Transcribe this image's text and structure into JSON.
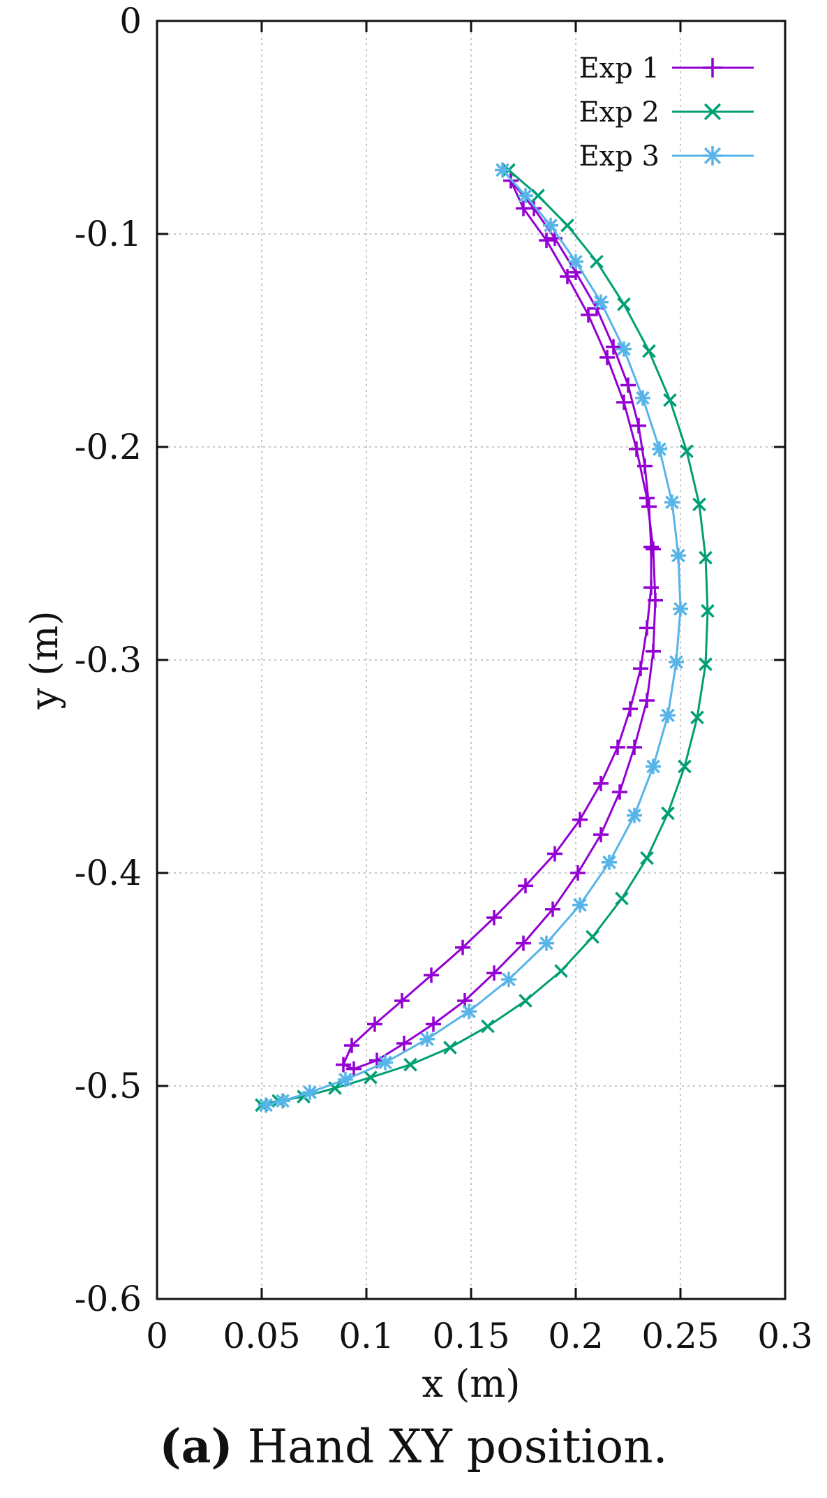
{
  "chart_data": {
    "type": "line",
    "title": "",
    "xlabel": "x (m)",
    "ylabel": "y (m)",
    "xlim": [
      0,
      0.3
    ],
    "ylim": [
      -0.6,
      0
    ],
    "xticks": [
      "0",
      "0.05",
      "0.1",
      "0.15",
      "0.2",
      "0.25",
      "0.3"
    ],
    "yticks": [
      "0",
      "-0.1",
      "-0.2",
      "-0.3",
      "-0.4",
      "-0.5",
      "-0.6"
    ],
    "xtick_values": [
      0,
      0.05,
      0.1,
      0.15,
      0.2,
      0.25,
      0.3
    ],
    "ytick_values": [
      0,
      -0.1,
      -0.2,
      -0.3,
      -0.4,
      -0.5,
      -0.6
    ],
    "grid": true,
    "legend_position": "top-right",
    "series": [
      {
        "name": "Exp 1",
        "color": "#9400d3",
        "marker": "plus",
        "x": [
          0.169,
          0.18,
          0.19,
          0.2,
          0.21,
          0.218,
          0.225,
          0.23,
          0.233,
          0.235,
          0.236,
          0.236,
          0.234,
          0.231,
          0.226,
          0.22,
          0.212,
          0.202,
          0.19,
          0.176,
          0.161,
          0.146,
          0.131,
          0.117,
          0.104,
          0.093,
          0.089,
          0.094,
          0.105,
          0.118,
          0.132,
          0.147,
          0.161,
          0.175,
          0.189,
          0.201,
          0.212,
          0.221,
          0.228,
          0.234,
          0.237,
          0.238,
          0.237,
          0.234,
          0.229,
          0.223,
          0.215,
          0.206,
          0.196,
          0.186,
          0.175,
          0.169
        ],
        "y": [
          -0.075,
          -0.088,
          -0.102,
          -0.118,
          -0.135,
          -0.153,
          -0.171,
          -0.19,
          -0.209,
          -0.228,
          -0.247,
          -0.266,
          -0.285,
          -0.304,
          -0.323,
          -0.341,
          -0.358,
          -0.375,
          -0.391,
          -0.406,
          -0.421,
          -0.435,
          -0.448,
          -0.46,
          -0.471,
          -0.481,
          -0.49,
          -0.492,
          -0.488,
          -0.48,
          -0.471,
          -0.46,
          -0.447,
          -0.433,
          -0.417,
          -0.4,
          -0.382,
          -0.362,
          -0.341,
          -0.319,
          -0.296,
          -0.272,
          -0.248,
          -0.224,
          -0.201,
          -0.179,
          -0.158,
          -0.138,
          -0.12,
          -0.103,
          -0.088,
          -0.075
        ]
      },
      {
        "name": "Exp 2",
        "color": "#009e73",
        "marker": "cross",
        "x": [
          0.168,
          0.182,
          0.196,
          0.21,
          0.223,
          0.235,
          0.245,
          0.253,
          0.259,
          0.262,
          0.263,
          0.262,
          0.258,
          0.252,
          0.244,
          0.234,
          0.222,
          0.208,
          0.193,
          0.176,
          0.158,
          0.14,
          0.121,
          0.102,
          0.085,
          0.07,
          0.058,
          0.05
        ],
        "y": [
          -0.07,
          -0.082,
          -0.096,
          -0.113,
          -0.133,
          -0.155,
          -0.178,
          -0.202,
          -0.227,
          -0.252,
          -0.277,
          -0.302,
          -0.327,
          -0.35,
          -0.372,
          -0.393,
          -0.412,
          -0.43,
          -0.446,
          -0.46,
          -0.472,
          -0.482,
          -0.49,
          -0.496,
          -0.501,
          -0.505,
          -0.507,
          -0.509
        ]
      },
      {
        "name": "Exp 3",
        "color": "#56b4e9",
        "marker": "star",
        "x": [
          0.165,
          0.176,
          0.188,
          0.2,
          0.212,
          0.223,
          0.232,
          0.24,
          0.246,
          0.249,
          0.25,
          0.248,
          0.244,
          0.237,
          0.228,
          0.216,
          0.202,
          0.186,
          0.168,
          0.149,
          0.129,
          0.109,
          0.09,
          0.073,
          0.06,
          0.052
        ],
        "y": [
          -0.07,
          -0.082,
          -0.096,
          -0.113,
          -0.132,
          -0.154,
          -0.177,
          -0.201,
          -0.226,
          -0.251,
          -0.276,
          -0.301,
          -0.326,
          -0.35,
          -0.373,
          -0.395,
          -0.415,
          -0.433,
          -0.45,
          -0.465,
          -0.478,
          -0.489,
          -0.497,
          -0.503,
          -0.507,
          -0.509
        ]
      }
    ]
  },
  "caption": {
    "label": "(a)",
    "text": " Hand XY position."
  }
}
